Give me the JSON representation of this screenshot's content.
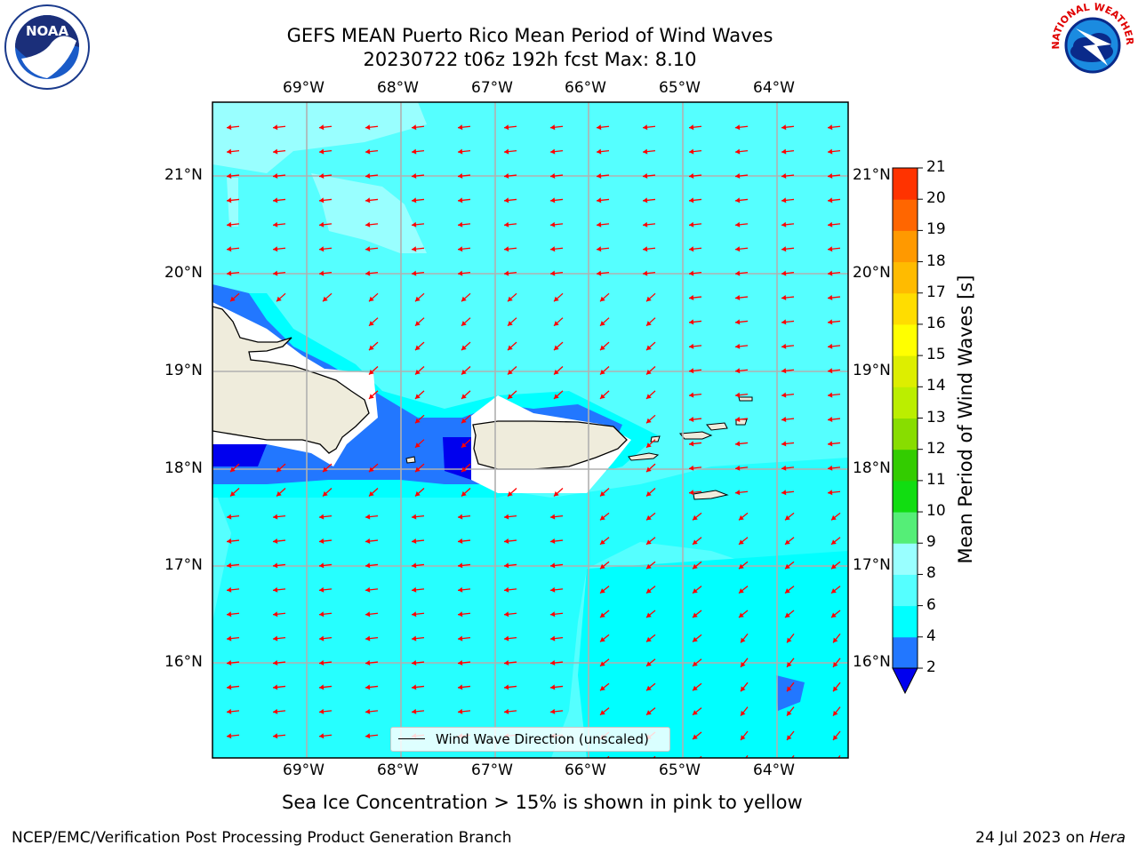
{
  "header": {
    "title_line1": "GEFS MEAN Puerto Rico Mean Period of Wind Waves",
    "title_line2": "20230722 t06z 192h fcst   Max: 8.10"
  },
  "logos": {
    "left": {
      "icon": "noaa-logo",
      "text": "NOAA"
    },
    "right": {
      "icon": "nws-logo",
      "text": "NATIONAL WEATHER SERVICE"
    }
  },
  "map": {
    "lon_labels": [
      "69°W",
      "68°W",
      "67°W",
      "66°W",
      "65°W",
      "64°W"
    ],
    "lat_labels": [
      "21°N",
      "20°N",
      "19°N",
      "18°N",
      "17°N",
      "16°N"
    ],
    "arrow_color": "#ff0000",
    "sea_color": "#55ffff",
    "land_color": "#efecdc",
    "legend_label": "Wind Wave Direction (unscaled)"
  },
  "colorbar": {
    "label": "Mean Period of Wind Waves [s]",
    "tick_labels": [
      "2",
      "4",
      "6",
      "8",
      "9",
      "10",
      "11",
      "12",
      "13",
      "14",
      "15",
      "16",
      "17",
      "18",
      "19",
      "20",
      "21"
    ],
    "colors": [
      "#2277ff",
      "#00ffff",
      "#55ffff",
      "#99ffff",
      "#55ee77",
      "#11dd11",
      "#33cc00",
      "#88dd00",
      "#bbee00",
      "#ddee00",
      "#ffff00",
      "#ffdd00",
      "#ffbb00",
      "#ff9900",
      "#ff6600",
      "#ff3300",
      "#ff0000"
    ],
    "under_color": "#0000ee"
  },
  "notes": {
    "sea_ice": "Sea Ice Concentration > 15% is shown in pink to yellow"
  },
  "footer": {
    "left": "NCEP/EMC/Verification Post Processing Product Generation Branch",
    "right_prefix": "24 Jul 2023 on ",
    "right_host": "Hera"
  }
}
